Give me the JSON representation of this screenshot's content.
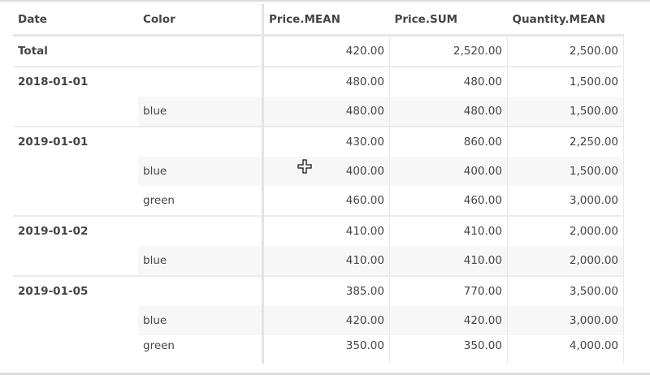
{
  "columns": [
    "Date",
    "Color",
    "Price.MEAN",
    "Price.SUM",
    "Quantity.MEAN"
  ],
  "rows": [
    {
      "type": "total",
      "date": "Total",
      "color": "",
      "price_mean": "420.00",
      "price_sum": "2,520.00",
      "quantity_mean": "2,500.00"
    },
    {
      "type": "group",
      "date": "2018-01-01",
      "color": "",
      "price_mean": "480.00",
      "price_sum": "480.00",
      "quantity_mean": "1,500.00"
    },
    {
      "type": "sub",
      "date": "",
      "color": "blue",
      "price_mean": "480.00",
      "price_sum": "480.00",
      "quantity_mean": "1,500.00"
    },
    {
      "type": "group",
      "date": "2019-01-01",
      "color": "",
      "price_mean": "430.00",
      "price_sum": "860.00",
      "quantity_mean": "2,250.00"
    },
    {
      "type": "sub",
      "date": "",
      "color": "blue",
      "price_mean": "400.00",
      "price_sum": "400.00",
      "quantity_mean": "1,500.00"
    },
    {
      "type": "plain",
      "date": "",
      "color": "green",
      "price_mean": "460.00",
      "price_sum": "460.00",
      "quantity_mean": "3,000.00"
    },
    {
      "type": "group",
      "date": "2019-01-02",
      "color": "",
      "price_mean": "410.00",
      "price_sum": "410.00",
      "quantity_mean": "2,000.00"
    },
    {
      "type": "sub",
      "date": "",
      "color": "blue",
      "price_mean": "410.00",
      "price_sum": "410.00",
      "quantity_mean": "2,000.00"
    },
    {
      "type": "group",
      "date": "2019-01-05",
      "color": "",
      "price_mean": "385.00",
      "price_sum": "770.00",
      "quantity_mean": "3,500.00"
    },
    {
      "type": "sub",
      "date": "",
      "color": "blue",
      "price_mean": "420.00",
      "price_sum": "420.00",
      "quantity_mean": "3,000.00"
    },
    {
      "type": "plain",
      "date": "",
      "color": "green",
      "price_mean": "350.00",
      "price_sum": "350.00",
      "quantity_mean": "4,000.00"
    }
  ],
  "cursor_icon": "crosshair-move-icon"
}
